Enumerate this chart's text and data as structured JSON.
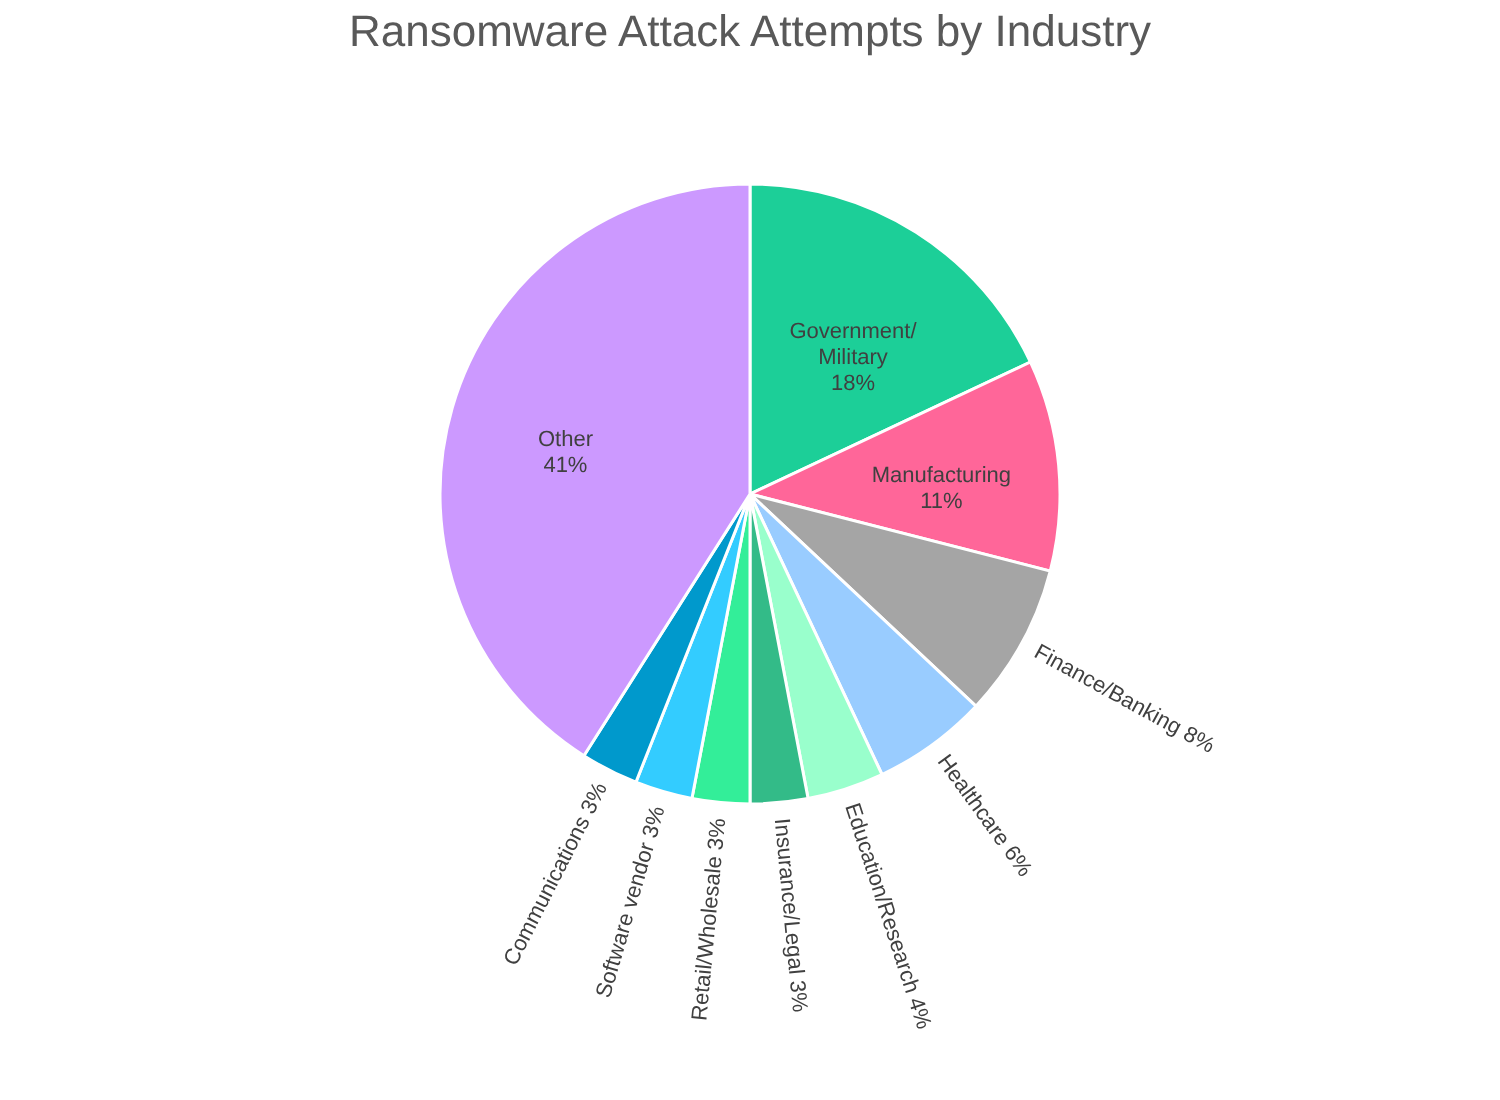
{
  "chart_data": {
    "type": "pie",
    "title": "Ransomware Attack Attempts by Industry",
    "categories": [
      "Government/Military",
      "Manufacturing",
      "Finance/Banking",
      "Healthcare",
      "Education/Research",
      "Insurance/Legal",
      "Retail/Wholesale",
      "Software vendor",
      "Communications",
      "Other"
    ],
    "values": [
      18,
      11,
      8,
      6,
      4,
      3,
      3,
      3,
      3,
      41
    ],
    "value_labels": [
      "18%",
      "11%",
      "8%",
      "6%",
      "4%",
      "3%",
      "3%",
      "3%",
      "3%",
      "41%"
    ],
    "colors": [
      "#1ccf98",
      "#ff6699",
      "#a5a5a5",
      "#99ccff",
      "#99ffcc",
      "#33bb88",
      "#33ee99",
      "#33ccff",
      "#0099cc",
      "#cc99ff"
    ]
  }
}
